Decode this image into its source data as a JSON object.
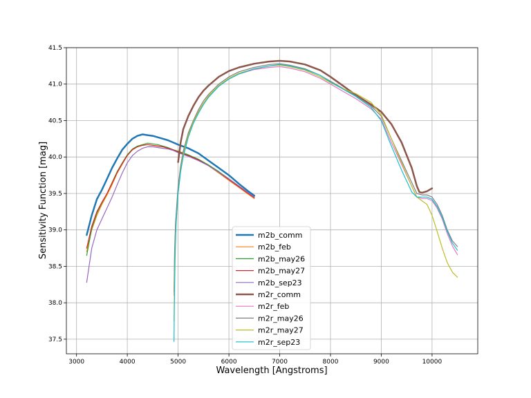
{
  "chart_data": {
    "type": "line",
    "xlabel": "Wavelength [Angstroms]",
    "ylabel": "Sensitivity Function [mag]",
    "xlim": [
      2800,
      10900
    ],
    "ylim": [
      37.3,
      41.5
    ],
    "xticks": [
      3000,
      4000,
      5000,
      6000,
      7000,
      8000,
      9000,
      10000
    ],
    "yticks": [
      37.5,
      38.0,
      38.5,
      39.0,
      39.5,
      40.0,
      40.5,
      41.0,
      41.5
    ],
    "xtick_labels": [
      "3000",
      "4000",
      "5000",
      "6000",
      "7000",
      "8000",
      "9000",
      "10000"
    ],
    "ytick_labels": [
      "37.5",
      "38.0",
      "38.5",
      "39.0",
      "39.5",
      "40.0",
      "40.5",
      "41.0",
      "41.5"
    ],
    "grid": true,
    "legend_position": "lower-center",
    "series": [
      {
        "name": "m2b_comm",
        "color": "#1f77b4",
        "width": 2.5,
        "x": [
          3200,
          3300,
          3400,
          3500,
          3600,
          3700,
          3800,
          3900,
          4000,
          4100,
          4200,
          4300,
          4400,
          4500,
          4600,
          4700,
          4800,
          4900,
          5000,
          5200,
          5400,
          5600,
          5800,
          6000,
          6200,
          6400,
          6500
        ],
        "y": [
          38.93,
          39.2,
          39.42,
          39.55,
          39.7,
          39.85,
          39.98,
          40.1,
          40.18,
          40.25,
          40.29,
          40.31,
          40.3,
          40.29,
          40.27,
          40.25,
          40.23,
          40.2,
          40.17,
          40.12,
          40.05,
          39.95,
          39.85,
          39.75,
          39.63,
          39.52,
          39.47
        ]
      },
      {
        "name": "m2b_feb",
        "color": "#ff7f0e",
        "width": 1.2,
        "x": [
          3200,
          3300,
          3400,
          3500,
          3600,
          3700,
          3800,
          3900,
          4000,
          4100,
          4200,
          4300,
          4400,
          4500,
          4600,
          4700,
          4800,
          4900,
          5000,
          5200,
          5400,
          5600,
          5800,
          6000,
          6200,
          6400,
          6500
        ],
        "y": [
          38.7,
          39.0,
          39.2,
          39.35,
          39.48,
          39.62,
          39.78,
          39.9,
          40.02,
          40.1,
          40.14,
          40.16,
          40.17,
          40.16,
          40.15,
          40.14,
          40.12,
          40.1,
          40.07,
          40.02,
          39.96,
          39.88,
          39.78,
          39.68,
          39.58,
          39.48,
          39.43
        ]
      },
      {
        "name": "m2b_may26",
        "color": "#2ca02c",
        "width": 1.2,
        "x": [
          3200,
          3300,
          3400,
          3500,
          3600,
          3700,
          3800,
          3900,
          4000,
          4100,
          4200,
          4300,
          4400,
          4500,
          4600,
          4700,
          4800,
          4900,
          5000,
          5200,
          5400,
          5600,
          5800,
          6000,
          6200,
          6400,
          6500
        ],
        "y": [
          38.65,
          39.02,
          39.23,
          39.37,
          39.5,
          39.65,
          39.8,
          39.92,
          40.03,
          40.11,
          40.15,
          40.17,
          40.19,
          40.18,
          40.17,
          40.15,
          40.13,
          40.1,
          40.08,
          40.03,
          39.97,
          39.89,
          39.8,
          39.7,
          39.6,
          39.5,
          39.45
        ]
      },
      {
        "name": "m2b_may27",
        "color": "#d62728",
        "width": 1.2,
        "x": [
          3200,
          3300,
          3400,
          3500,
          3600,
          3700,
          3800,
          3900,
          4000,
          4100,
          4200,
          4300,
          4400,
          4500,
          4600,
          4700,
          4800,
          4900,
          5000,
          5200,
          5400,
          5600,
          5800,
          6000,
          6200,
          6400,
          6500
        ],
        "y": [
          38.75,
          39.05,
          39.25,
          39.38,
          39.5,
          39.64,
          39.79,
          39.91,
          40.02,
          40.1,
          40.14,
          40.16,
          40.17,
          40.16,
          40.15,
          40.14,
          40.12,
          40.1,
          40.07,
          40.02,
          39.96,
          39.88,
          39.79,
          39.69,
          39.59,
          39.49,
          39.44
        ]
      },
      {
        "name": "m2b_sep23",
        "color": "#9467bd",
        "width": 1.2,
        "x": [
          3200,
          3300,
          3400,
          3500,
          3600,
          3700,
          3800,
          3900,
          4000,
          4100,
          4200,
          4300,
          4400,
          4500,
          4600,
          4700,
          4800,
          4900,
          5000,
          5200,
          5400,
          5600,
          5800,
          6000,
          6200,
          6400,
          6500
        ],
        "y": [
          38.28,
          38.75,
          39.0,
          39.15,
          39.3,
          39.45,
          39.62,
          39.78,
          39.92,
          40.02,
          40.08,
          40.12,
          40.14,
          40.14,
          40.13,
          40.12,
          40.11,
          40.09,
          40.06,
          40.01,
          39.95,
          39.88,
          39.79,
          39.7,
          39.6,
          39.5,
          39.45
        ]
      },
      {
        "name": "m2r_comm",
        "color": "#8c564b",
        "width": 2.5,
        "x": [
          5000,
          5050,
          5100,
          5200,
          5300,
          5400,
          5500,
          5600,
          5800,
          6000,
          6200,
          6500,
          6800,
          7000,
          7200,
          7500,
          7800,
          8000,
          8200,
          8500,
          8800,
          9000,
          9200,
          9400,
          9600,
          9700,
          9750,
          9800,
          9900,
          10000
        ],
        "y": [
          39.93,
          40.2,
          40.38,
          40.56,
          40.7,
          40.82,
          40.91,
          40.98,
          41.1,
          41.18,
          41.23,
          41.28,
          41.31,
          41.32,
          41.31,
          41.27,
          41.19,
          41.1,
          41.0,
          40.85,
          40.72,
          40.62,
          40.45,
          40.2,
          39.85,
          39.6,
          39.52,
          39.51,
          39.53,
          39.57
        ]
      },
      {
        "name": "m2r_feb",
        "color": "#e377c2",
        "width": 1.2,
        "x": [
          4920,
          4930,
          4950,
          5000,
          5050,
          5100,
          5200,
          5300,
          5400,
          5500,
          5600,
          5800,
          6000,
          6200,
          6500,
          6800,
          7000,
          7200,
          7500,
          7800,
          8000,
          8200,
          8500,
          8800,
          9000,
          9200,
          9400,
          9600,
          9700,
          9800,
          9900,
          10000,
          10100,
          10200,
          10300,
          10400,
          10500
        ],
        "y": [
          38.1,
          38.6,
          39.05,
          39.55,
          39.85,
          40.05,
          40.3,
          40.48,
          40.62,
          40.74,
          40.83,
          40.97,
          41.07,
          41.14,
          41.2,
          41.23,
          41.24,
          41.22,
          41.17,
          41.08,
          41.0,
          40.92,
          40.8,
          40.66,
          40.52,
          40.2,
          39.9,
          39.6,
          39.45,
          39.43,
          39.43,
          39.4,
          39.3,
          39.15,
          38.95,
          38.78,
          38.66
        ]
      },
      {
        "name": "m2r_may26",
        "color": "#7f7f7f",
        "width": 1.2,
        "x": [
          4920,
          4930,
          4950,
          5000,
          5050,
          5100,
          5200,
          5300,
          5400,
          5500,
          5600,
          5800,
          6000,
          6200,
          6500,
          6800,
          7000,
          7200,
          7500,
          7800,
          8000,
          8200,
          8500,
          8800,
          9000,
          9200,
          9400,
          9600,
          9700,
          9800,
          9900,
          10000,
          10100,
          10200,
          10300,
          10400,
          10500
        ],
        "y": [
          38.15,
          38.7,
          39.1,
          39.6,
          39.88,
          40.08,
          40.33,
          40.5,
          40.65,
          40.77,
          40.86,
          41.0,
          41.1,
          41.17,
          41.23,
          41.27,
          41.28,
          41.26,
          41.21,
          41.12,
          41.04,
          40.96,
          40.84,
          40.7,
          40.56,
          40.25,
          39.95,
          39.65,
          39.5,
          39.48,
          39.48,
          39.45,
          39.35,
          39.2,
          39.0,
          38.85,
          38.77
        ]
      },
      {
        "name": "m2r_may27",
        "color": "#bcbd22",
        "width": 1.2,
        "x": [
          4920,
          4930,
          4950,
          5000,
          5050,
          5100,
          5200,
          5300,
          5400,
          5500,
          5600,
          5800,
          6000,
          6200,
          6500,
          6800,
          7000,
          7200,
          7500,
          7800,
          8000,
          8200,
          8500,
          8800,
          9000,
          9200,
          9400,
          9600,
          9700,
          9800,
          9900,
          10000,
          10100,
          10200,
          10300,
          10400,
          10500
        ],
        "y": [
          37.75,
          38.4,
          38.95,
          39.5,
          39.82,
          40.03,
          40.3,
          40.48,
          40.62,
          40.74,
          40.84,
          40.98,
          41.08,
          41.15,
          41.21,
          41.25,
          41.26,
          41.24,
          41.19,
          41.1,
          41.02,
          40.95,
          40.87,
          40.75,
          40.58,
          40.25,
          39.92,
          39.6,
          39.45,
          39.4,
          39.35,
          39.2,
          38.98,
          38.75,
          38.55,
          38.42,
          38.35
        ]
      },
      {
        "name": "m2r_sep23",
        "color": "#17becf",
        "width": 1.2,
        "x": [
          4920,
          4925,
          4940,
          4960,
          5000,
          5050,
          5100,
          5200,
          5300,
          5400,
          5500,
          5600,
          5800,
          6000,
          6200,
          6500,
          6800,
          7000,
          7200,
          7500,
          7800,
          8000,
          8200,
          8500,
          8800,
          9000,
          9200,
          9400,
          9600,
          9700,
          9800,
          9900,
          10000,
          10100,
          10200,
          10300,
          10400,
          10500
        ],
        "y": [
          37.47,
          37.9,
          38.6,
          39.1,
          39.5,
          39.8,
          40.0,
          40.27,
          40.46,
          40.6,
          40.72,
          40.82,
          40.97,
          41.07,
          41.14,
          41.21,
          41.25,
          41.27,
          41.25,
          41.2,
          41.12,
          41.03,
          40.95,
          40.83,
          40.68,
          40.5,
          40.15,
          39.82,
          39.52,
          39.45,
          39.45,
          39.45,
          39.42,
          39.32,
          39.17,
          38.98,
          38.82,
          38.72
        ]
      }
    ]
  }
}
